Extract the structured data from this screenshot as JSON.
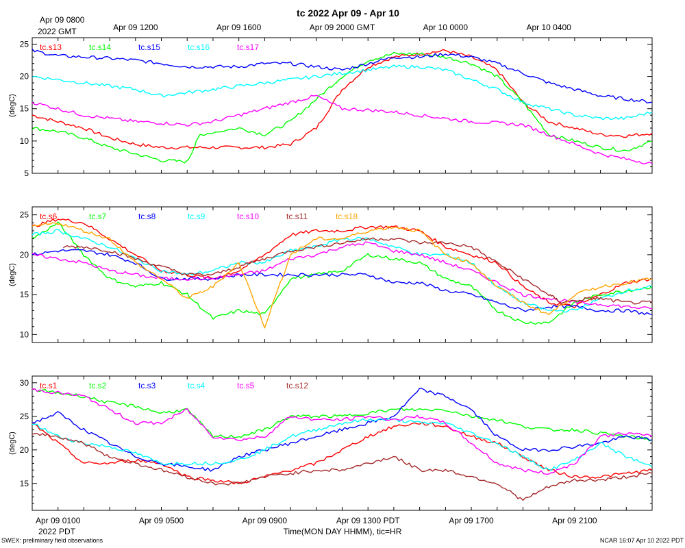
{
  "title": "tc 2022 Apr 09 - Apr 10",
  "footer_left": "SWEX: preliminary field observations",
  "footer_right": "NCAR 16:07 Apr 10 2022 PDT",
  "xlabel": "Time(MON DAY HHMM), tic=HR",
  "top_axis": {
    "first_label": "Apr 09 0800",
    "year_label": "2022 GMT",
    "labels": [
      {
        "h": 4,
        "text": "Apr 09 1200"
      },
      {
        "h": 8,
        "text": "Apr 09 1600"
      },
      {
        "h": 12,
        "text": "Apr 09 2000 GMT"
      },
      {
        "h": 16,
        "text": "Apr 10 0000"
      },
      {
        "h": 20,
        "text": "Apr 10 0400"
      }
    ]
  },
  "bottom_axis": {
    "labels": [
      {
        "h": 1,
        "text": "Apr 09 0100"
      },
      {
        "h": 5,
        "text": "Apr 09 0500"
      },
      {
        "h": 9,
        "text": "Apr 09 0900"
      },
      {
        "h": 13,
        "text": "Apr 09 1300 PDT"
      },
      {
        "h": 17,
        "text": "Apr 09 1700"
      },
      {
        "h": 21,
        "text": "Apr 09 2100"
      }
    ],
    "year_label": "2022 PDT"
  },
  "chart_data": [
    {
      "type": "line",
      "ylabel": "(degC)",
      "ylim": [
        5,
        26
      ],
      "yticks": [
        5,
        10,
        15,
        20,
        25
      ],
      "xlim": [
        0,
        24
      ],
      "x_unit": "hours after Apr 09 0000 PDT",
      "series": [
        {
          "name": "tc.s13",
          "color": "#ff0000",
          "x": [
            0,
            1,
            2,
            3,
            4,
            5,
            6,
            7,
            8,
            9,
            10,
            11,
            12,
            13,
            14,
            15,
            16,
            17,
            18,
            19,
            20,
            21,
            22,
            23,
            24
          ],
          "values": [
            14,
            13,
            12,
            10.5,
            9.5,
            9,
            9,
            9,
            9,
            9,
            9.5,
            12,
            18,
            21.5,
            23,
            23.5,
            24,
            23,
            21,
            16,
            13,
            12,
            11,
            10.8,
            11.2
          ]
        },
        {
          "name": "tc.s14",
          "color": "#00ff00",
          "x": [
            0,
            1,
            2,
            3,
            4,
            5,
            6,
            6.5,
            8,
            9,
            10,
            11,
            12,
            13,
            14,
            15,
            16,
            17,
            18,
            19,
            20,
            21,
            22,
            23,
            24
          ],
          "values": [
            12,
            11.5,
            10.5,
            9,
            8,
            7,
            6.8,
            11,
            12,
            11,
            13,
            16.5,
            20,
            22.5,
            23.5,
            23.5,
            23,
            22,
            20,
            16,
            11,
            10,
            9,
            8.5,
            10
          ]
        },
        {
          "name": "tc.s15",
          "color": "#0000ff",
          "x": [
            0,
            1,
            2,
            3,
            4,
            5,
            6,
            7,
            8,
            9,
            10,
            11,
            12,
            13,
            14,
            15,
            16,
            17,
            18,
            19,
            20,
            21,
            22,
            23,
            24
          ],
          "values": [
            24,
            23.2,
            23,
            22.8,
            22.5,
            22,
            21.5,
            21.5,
            21.5,
            22,
            22,
            21.5,
            21,
            22,
            23,
            23,
            23.5,
            23,
            22,
            20.5,
            19,
            18,
            17,
            16.5,
            16
          ]
        },
        {
          "name": "tc.s16",
          "color": "#00ffff",
          "x": [
            0,
            1,
            2,
            3,
            4,
            5,
            6,
            7,
            8,
            9,
            10,
            11,
            12,
            13,
            14,
            15,
            16,
            17,
            18,
            19,
            20,
            21,
            22,
            23,
            24
          ],
          "values": [
            20,
            19.5,
            19,
            18.5,
            18,
            17,
            17.5,
            18,
            18.5,
            19,
            19.5,
            20,
            20.5,
            21,
            21.5,
            21.5,
            21,
            19.5,
            18,
            16,
            15,
            14,
            13.5,
            13.5,
            14.5
          ]
        },
        {
          "name": "tc.s17",
          "color": "#ff00ff",
          "x": [
            0,
            1,
            2,
            3,
            4,
            5,
            6,
            7,
            8,
            9,
            10,
            11,
            12,
            13,
            14,
            15,
            16,
            17,
            18,
            19,
            20,
            21,
            22,
            23,
            24
          ],
          "values": [
            16,
            15,
            14,
            13.5,
            13,
            12.8,
            12.5,
            13,
            14,
            15,
            16,
            17,
            15,
            14.8,
            14.5,
            14,
            13.5,
            13,
            12.8,
            12.5,
            11,
            9.5,
            8,
            7.2,
            6.5
          ]
        }
      ]
    },
    {
      "type": "line",
      "ylabel": "(degC)",
      "ylim": [
        9,
        26
      ],
      "yticks": [
        10,
        15,
        20,
        25
      ],
      "xlim": [
        0,
        24
      ],
      "x_unit": "hours after Apr 09 0000 PDT",
      "series": [
        {
          "name": "tc.s6",
          "color": "#ff0000",
          "x": [
            0,
            1,
            2,
            3,
            4,
            5,
            6,
            7,
            8,
            9,
            10,
            11,
            12,
            13,
            14,
            15,
            16,
            17,
            18,
            19,
            20,
            21,
            22,
            23,
            24
          ],
          "values": [
            23.5,
            24.5,
            24,
            22,
            20,
            18,
            17.5,
            17,
            18,
            20,
            22.5,
            23,
            23,
            23.5,
            23.5,
            23,
            21,
            20,
            19,
            16,
            14,
            13.5,
            15,
            16.5,
            17
          ]
        },
        {
          "name": "tc.s7",
          "color": "#00ff00",
          "x": [
            0,
            1,
            2,
            3,
            4,
            5,
            6,
            7,
            8,
            9,
            10,
            11,
            12,
            13,
            14,
            15,
            16,
            17,
            18,
            19,
            20,
            21,
            22,
            23,
            24
          ],
          "values": [
            22,
            24,
            20,
            17,
            16,
            16.5,
            15,
            12,
            13,
            12.5,
            17,
            17.5,
            18,
            20,
            19.5,
            19,
            17,
            16,
            13,
            11.5,
            11.5,
            14,
            15,
            15.5,
            16
          ]
        },
        {
          "name": "tc.s8",
          "color": "#0000ff",
          "x": [
            0,
            1,
            2,
            3,
            4,
            5,
            6,
            7,
            8,
            9,
            10,
            11,
            12,
            13,
            14,
            15,
            16,
            17,
            18,
            19,
            20,
            21,
            22,
            23,
            24
          ],
          "values": [
            20,
            20.5,
            20.5,
            20,
            19,
            17,
            17,
            17,
            17.5,
            17.5,
            17.5,
            17.5,
            17.5,
            17.5,
            16.5,
            16.5,
            15.5,
            15,
            14,
            13,
            13.5,
            13.5,
            13,
            13,
            12.5
          ]
        },
        {
          "name": "tc.s9",
          "color": "#00ffff",
          "x": [
            0,
            1,
            2,
            3,
            4,
            5,
            6,
            7,
            8,
            9,
            10,
            11,
            12,
            13,
            14,
            15,
            16,
            17,
            18,
            19,
            20,
            21,
            22,
            23,
            24
          ],
          "values": [
            22.5,
            23,
            22,
            21,
            19.5,
            18,
            17.5,
            18,
            19,
            19,
            20.5,
            21,
            22,
            22,
            21,
            20,
            20,
            19,
            16,
            14,
            13,
            13,
            14.5,
            15.5,
            16
          ]
        },
        {
          "name": "tc.s10",
          "color": "#ff00ff",
          "x": [
            0,
            1,
            2,
            3,
            4,
            5,
            6,
            7,
            8,
            9,
            10,
            11,
            12,
            13,
            14,
            15,
            16,
            17,
            18,
            19,
            20,
            21,
            22,
            23,
            24
          ],
          "values": [
            20,
            19.5,
            19,
            18,
            17.5,
            17,
            17,
            17,
            17.5,
            18,
            19.5,
            20,
            21,
            21.5,
            20.5,
            20,
            19,
            18,
            16.5,
            15,
            14.5,
            14,
            13.8,
            13.5,
            13.2
          ]
        },
        {
          "name": "tc.s11",
          "color": "#a52a2a",
          "x": [
            1.2,
            2,
            3,
            4,
            5,
            6,
            7,
            8,
            9,
            10,
            11,
            12,
            13,
            14,
            15,
            16,
            17,
            18,
            19,
            20,
            20.5,
            21.5,
            22,
            23,
            24
          ],
          "values": [
            21,
            21,
            20.5,
            19.5,
            18.5,
            17.5,
            17.5,
            18.5,
            19.5,
            20.5,
            21,
            21.5,
            22,
            22,
            21.5,
            21.5,
            21,
            19,
            17,
            15,
            14,
            14.5,
            14.5,
            14,
            14
          ]
        },
        {
          "name": "tc.s18",
          "color": "#ffa500",
          "x": [
            0,
            1,
            2,
            3,
            4,
            5,
            6,
            7,
            8,
            9,
            10,
            11,
            12,
            13,
            14,
            15,
            16,
            17,
            18,
            19,
            20,
            21,
            22,
            23,
            24
          ],
          "values": [
            23.5,
            24,
            23,
            22,
            19,
            17,
            14.5,
            16,
            19,
            11,
            20,
            22,
            22,
            23,
            23.5,
            23,
            20,
            19,
            16,
            14,
            12.5,
            15,
            16,
            16.5,
            17
          ]
        }
      ]
    },
    {
      "type": "line",
      "ylabel": "(degC)",
      "ylim": [
        11,
        31
      ],
      "yticks": [
        15,
        20,
        25,
        30
      ],
      "xlim": [
        0,
        24
      ],
      "x_unit": "hours after Apr 09 0000 PDT",
      "series": [
        {
          "name": "tc.s1",
          "color": "#ff0000",
          "x": [
            0,
            1,
            2,
            3,
            4,
            5,
            6,
            7,
            8,
            9,
            10,
            11,
            12,
            13,
            14,
            15,
            16,
            17,
            18,
            19,
            20,
            21,
            22,
            23,
            24
          ],
          "values": [
            24,
            21,
            18,
            18,
            18.5,
            18,
            16,
            15.5,
            15,
            16,
            17,
            18,
            20,
            22,
            23.5,
            24,
            23.5,
            22,
            21,
            19,
            17,
            16,
            16,
            16.5,
            17
          ]
        },
        {
          "name": "tc.s2",
          "color": "#00ff00",
          "x": [
            0,
            1,
            2,
            3,
            4,
            5,
            6,
            7,
            8,
            9,
            10,
            11,
            12,
            13,
            14,
            15,
            16,
            17,
            18,
            19,
            20,
            21,
            22,
            23,
            24
          ],
          "values": [
            29,
            28.5,
            28,
            27,
            26.5,
            25.5,
            26,
            22,
            22,
            23,
            25,
            25,
            25,
            25.5,
            26,
            26,
            26,
            25,
            24.5,
            23.5,
            23,
            23,
            22.5,
            22,
            21.5
          ]
        },
        {
          "name": "tc.s3",
          "color": "#0000ff",
          "x": [
            0,
            1,
            2,
            3,
            4,
            5,
            6,
            7,
            8,
            9,
            10,
            11,
            12,
            13,
            14,
            15,
            16,
            17,
            18,
            19,
            20,
            21,
            22,
            23,
            24
          ],
          "values": [
            24,
            25.5,
            23,
            21,
            19,
            18,
            17.5,
            17,
            19,
            20,
            21,
            22,
            23,
            24,
            25,
            29,
            28,
            26,
            22,
            20,
            20,
            20.5,
            21,
            22,
            21.5
          ]
        },
        {
          "name": "tc.s4",
          "color": "#00ffff",
          "x": [
            0,
            1,
            2,
            3,
            4,
            5,
            6,
            7,
            8,
            9,
            10,
            11,
            12,
            13,
            14,
            15,
            16,
            17,
            18,
            19,
            20,
            21,
            22,
            23,
            24
          ],
          "values": [
            24,
            22,
            21,
            20.5,
            19.5,
            18,
            18,
            18,
            18.5,
            20,
            22,
            23,
            24,
            24.5,
            24.5,
            24,
            24,
            22.5,
            21,
            19,
            17,
            18.5,
            21,
            19,
            17.5
          ]
        },
        {
          "name": "tc.s5",
          "color": "#ff00ff",
          "x": [
            0,
            1,
            2,
            3,
            4,
            5,
            6,
            7,
            8,
            9,
            10,
            11,
            12,
            13,
            14,
            15,
            16,
            17,
            18,
            19,
            20,
            21,
            22,
            23,
            24
          ],
          "values": [
            29,
            28.5,
            28,
            26,
            24,
            24,
            26,
            22,
            21.5,
            22,
            25,
            24.5,
            24.5,
            25,
            24.5,
            25,
            24,
            21,
            18,
            17,
            16.5,
            18,
            22,
            22.5,
            22
          ]
        },
        {
          "name": "tc.s12",
          "color": "#a52a2a",
          "x": [
            0,
            1,
            2,
            3,
            4,
            5,
            6,
            7,
            8,
            9,
            10,
            11,
            12,
            13,
            14,
            15,
            16,
            17,
            18,
            19,
            20,
            21,
            22,
            23,
            24
          ],
          "values": [
            22.5,
            22,
            21,
            19,
            18,
            17,
            16,
            15,
            15,
            16,
            16.5,
            17,
            17,
            18,
            19,
            17,
            17,
            16,
            15,
            12.5,
            14.5,
            15.5,
            15.5,
            16,
            16.5
          ]
        }
      ]
    }
  ]
}
